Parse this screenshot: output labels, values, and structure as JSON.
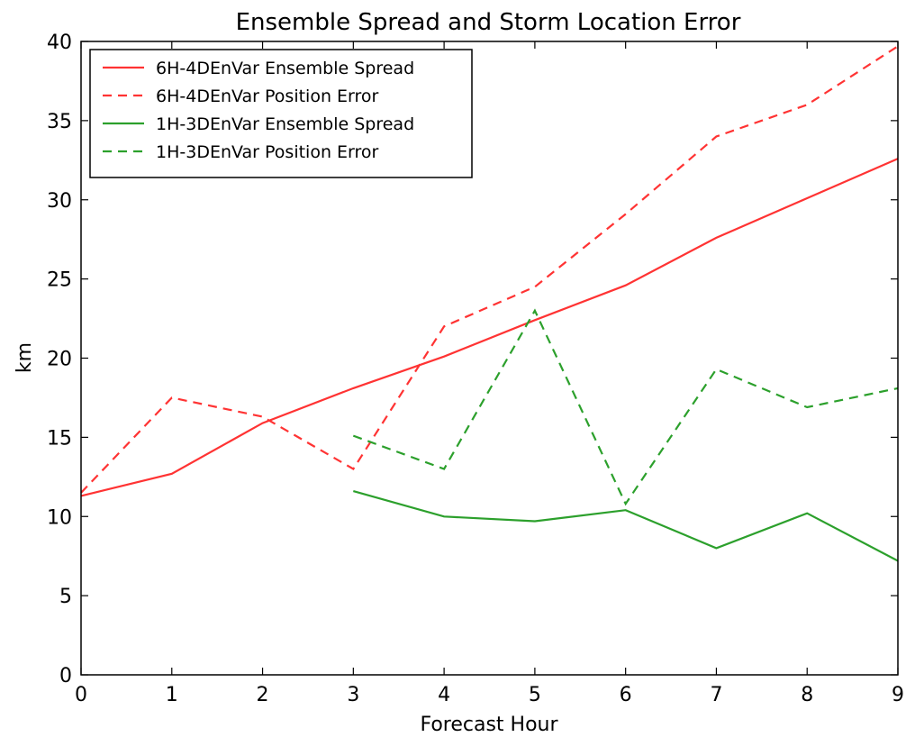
{
  "chart_data": {
    "type": "line",
    "title": "Ensemble Spread and Storm Location Error",
    "xlabel": "Forecast Hour",
    "ylabel": "km",
    "xlim": [
      0,
      9
    ],
    "ylim": [
      0,
      40
    ],
    "xticks": [
      "0",
      "1",
      "2",
      "3",
      "4",
      "5",
      "6",
      "7",
      "8",
      "9"
    ],
    "yticks": [
      "0",
      "5",
      "10",
      "15",
      "20",
      "25",
      "30",
      "35",
      "40"
    ],
    "grid": false,
    "legend_position": "top-left",
    "series": [
      {
        "name": "6H-4DEnVar Ensemble Spread",
        "color": "#ff3333",
        "style": "solid",
        "x": [
          0,
          1,
          2,
          3,
          4,
          5,
          6,
          7,
          8,
          9
        ],
        "y": [
          11.3,
          12.7,
          15.9,
          18.1,
          20.1,
          22.4,
          24.6,
          27.6,
          30.1,
          32.6
        ]
      },
      {
        "name": "6H-4DEnVar Position Error",
        "color": "#ff3333",
        "style": "dashed",
        "x": [
          0,
          1,
          2,
          3,
          4,
          5,
          6,
          7,
          8,
          9
        ],
        "y": [
          11.5,
          17.5,
          16.3,
          13.0,
          22.0,
          24.5,
          29.1,
          34.0,
          36.0,
          39.7
        ]
      },
      {
        "name": "1H-3DEnVar Ensemble Spread",
        "color": "#2ca02c",
        "style": "solid",
        "x": [
          3,
          4,
          5,
          6,
          7,
          8,
          9
        ],
        "y": [
          11.6,
          10.0,
          9.7,
          10.4,
          8.0,
          10.2,
          7.2
        ]
      },
      {
        "name": "1H-3DEnVar Position Error",
        "color": "#2ca02c",
        "style": "dashed",
        "x": [
          3,
          4,
          5,
          6,
          7,
          8,
          9
        ],
        "y": [
          15.1,
          13.0,
          23.0,
          10.8,
          19.3,
          16.9,
          18.1
        ]
      }
    ]
  }
}
